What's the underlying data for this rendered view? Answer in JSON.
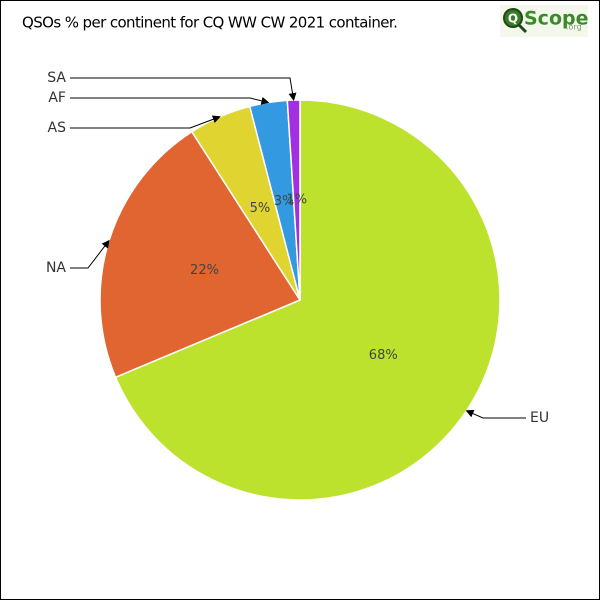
{
  "chart_data": {
    "type": "pie",
    "title": "QSOs % per continent for CQ WW CW 2021 container.",
    "logo": {
      "mark": "Q",
      "name": "Scope",
      "suffix": ".org"
    },
    "categories": [
      "EU",
      "NA",
      "AS",
      "AF",
      "SA"
    ],
    "values": [
      68,
      22,
      5,
      3,
      1
    ],
    "value_labels": [
      "68%",
      "22%",
      "5%",
      "3%",
      "1%"
    ],
    "colors": [
      "#bde22e",
      "#e06530",
      "#e0d530",
      "#3399e0",
      "#a030e0"
    ]
  }
}
